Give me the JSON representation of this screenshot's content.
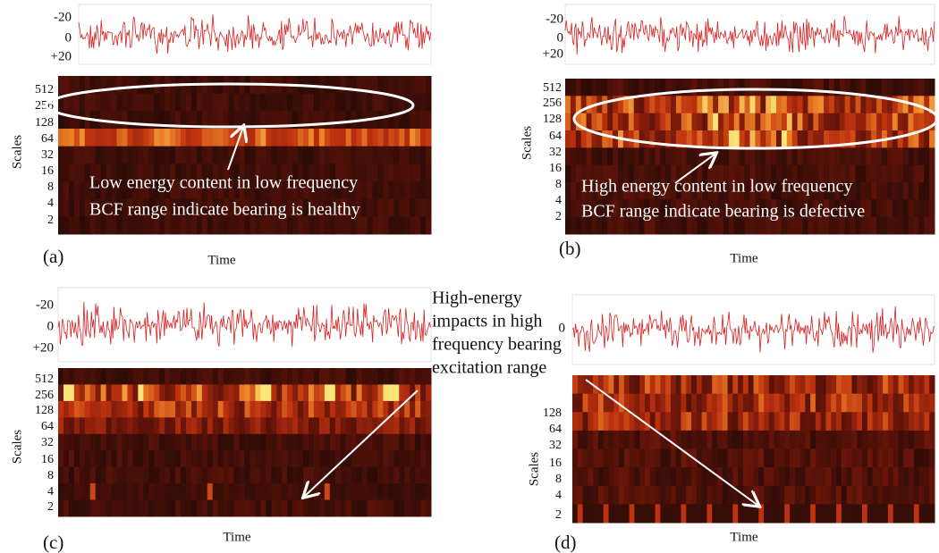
{
  "panels": [
    {
      "label": "(a)",
      "x_label": "Time",
      "y_label": "Scales",
      "signal_ticks": [
        "-20",
        "0",
        "+20"
      ],
      "scale_ticks": [
        "512",
        "256",
        "128",
        "64",
        "32",
        "16",
        "8",
        "4",
        "2"
      ],
      "annotation": [
        "Low energy content in low frequency",
        "BCF range indicate bearing is healthy"
      ]
    },
    {
      "label": "(b)",
      "x_label": "Time",
      "y_label": "Scales",
      "signal_ticks": [
        "-20",
        "0",
        "+20"
      ],
      "scale_ticks": [
        "512",
        "256",
        "128",
        "64",
        "32",
        "16",
        "8",
        "4",
        "2"
      ],
      "annotation": [
        "High  energy  content  in  low  frequency",
        "BCF range indicate bearing is defective"
      ]
    },
    {
      "label": "(c)",
      "x_label": "Time",
      "y_label": "Scales",
      "signal_ticks": [
        "-20",
        "0",
        "+20"
      ],
      "scale_ticks": [
        "512",
        "256",
        "128",
        "64",
        "32",
        "16",
        "8",
        "4",
        "2"
      ]
    },
    {
      "label": "(d)",
      "x_label": "Time",
      "y_label": "Scales",
      "signal_ticks": [
        "0"
      ],
      "scale_ticks": [
        "128",
        "64",
        "32",
        "16",
        "8",
        "4",
        "2"
      ]
    }
  ],
  "callout": [
    "High-energy",
    "impacts in high",
    "frequency bearing",
    "excitation range"
  ]
}
